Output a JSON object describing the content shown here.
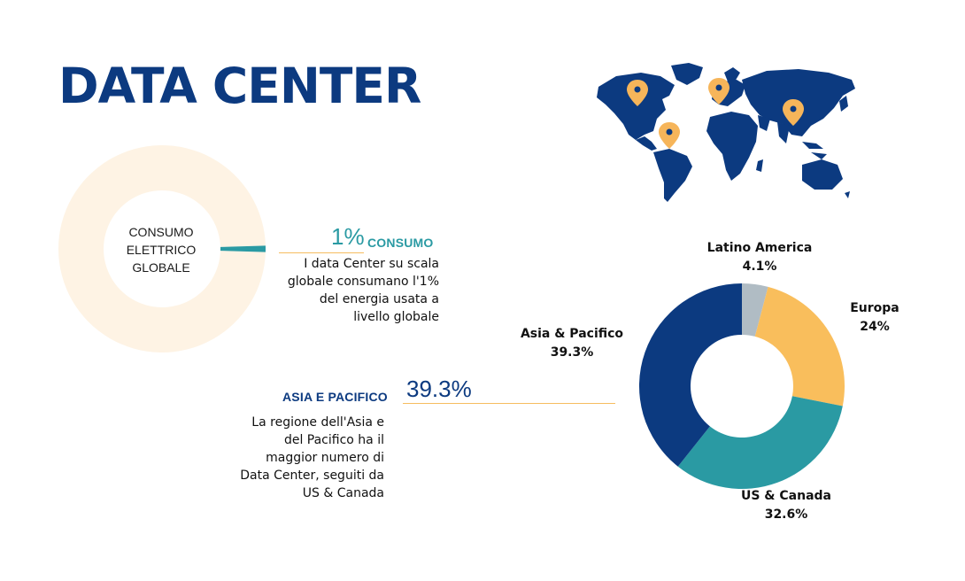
{
  "title": "DATA CENTER",
  "colors": {
    "title": "#0c3a80",
    "teal": "#2a9aa3",
    "navy": "#0c3a80",
    "yellow": "#f9be5c",
    "gray": "#b0bcc4",
    "cream": "#fef3e4",
    "pin": "#f6b55a"
  },
  "global_donut": {
    "center_lines": [
      "CONSUMO",
      "ELETTRICO",
      "GLOBALE"
    ]
  },
  "consumo": {
    "pct": "1%",
    "tag": "CONSUMO",
    "desc_lines": [
      "I data Center su scala",
      "globale consumano l'1%",
      "del energia usata a",
      "livello globale"
    ]
  },
  "asia": {
    "tag": "ASIA E PACIFICO",
    "pct": "39.3%",
    "desc_lines": [
      "La regione dell'Asia e",
      "del Pacifico ha il",
      "maggior numero di",
      "Data Center,  seguiti da",
      "US & Canada"
    ]
  },
  "map": {
    "icon": "world-map-icon",
    "pins": [
      "map-pin-icon",
      "map-pin-icon",
      "map-pin-icon",
      "map-pin-icon"
    ]
  },
  "chart_data": [
    {
      "type": "pie",
      "series": [
        {
          "values": [
            99,
            1
          ]
        }
      ],
      "categories": [
        "",
        "Data Center"
      ],
      "colors": [
        "#fef3e4",
        "#2a9aa3"
      ]
    },
    {
      "type": "pie",
      "categories": [
        "Latino America",
        "Europa",
        "US & Canada",
        "Asia & Pacifico"
      ],
      "values": [
        4.1,
        24,
        32.6,
        39.3
      ],
      "value_labels": [
        "4.1%",
        "24%",
        "32.6%",
        "39.3%"
      ],
      "colors": [
        "#b0bcc4",
        "#f9be5c",
        "#2a9aa3",
        "#0c3a80"
      ]
    }
  ]
}
